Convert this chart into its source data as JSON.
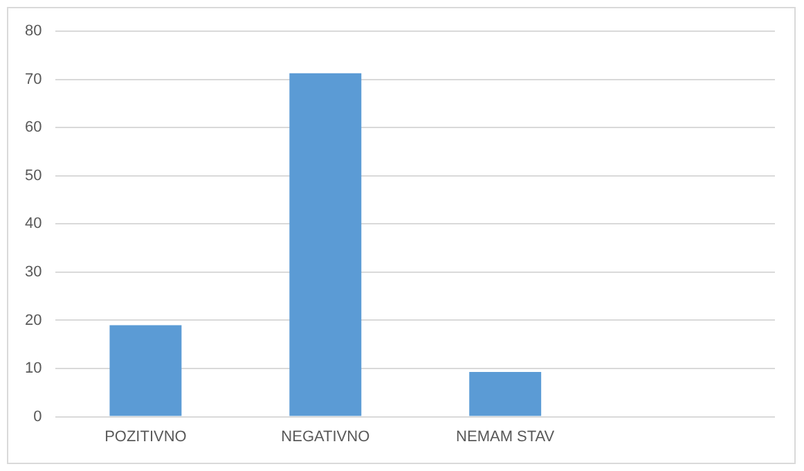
{
  "chart_data": {
    "type": "bar",
    "categories": [
      "POZITIVNO",
      "NEGATIVNO",
      "NEMAM STAV",
      null
    ],
    "values": [
      19,
      71.3,
      9.3,
      null
    ],
    "color": "#5b9bd5",
    "ylim": [
      0,
      80
    ],
    "yticks": [
      0,
      10,
      20,
      30,
      40,
      50,
      60,
      70,
      80
    ],
    "grid": "y",
    "legend": false
  }
}
